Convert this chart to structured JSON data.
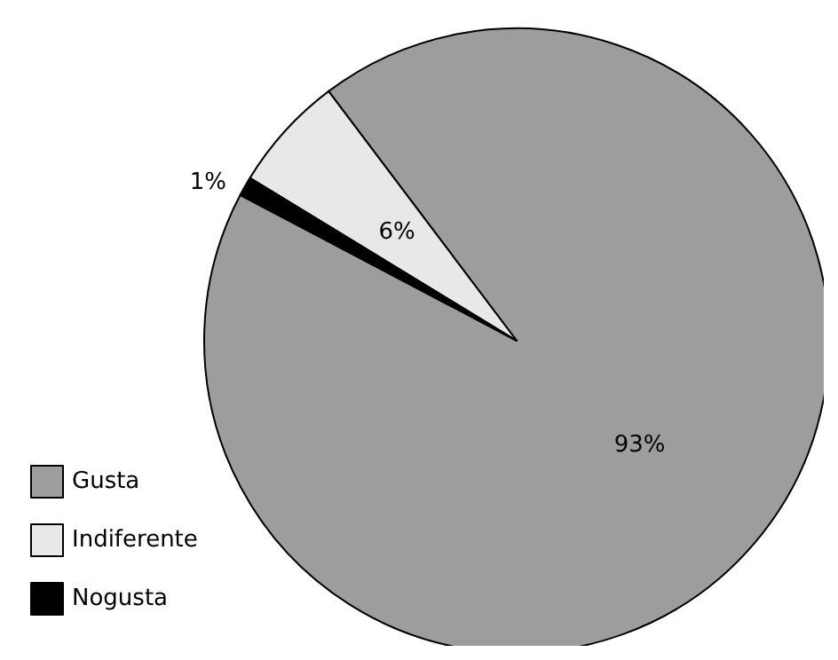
{
  "chart_data": {
    "type": "pie",
    "categories": [
      "Gusta",
      "Indiferente",
      "Nogusta"
    ],
    "values": [
      93,
      6,
      1
    ],
    "colors": [
      "#9d9d9d",
      "#e8e8e8",
      "#000000"
    ],
    "value_labels": [
      "93%",
      "6%",
      "1%"
    ],
    "legend": "bottom left"
  }
}
